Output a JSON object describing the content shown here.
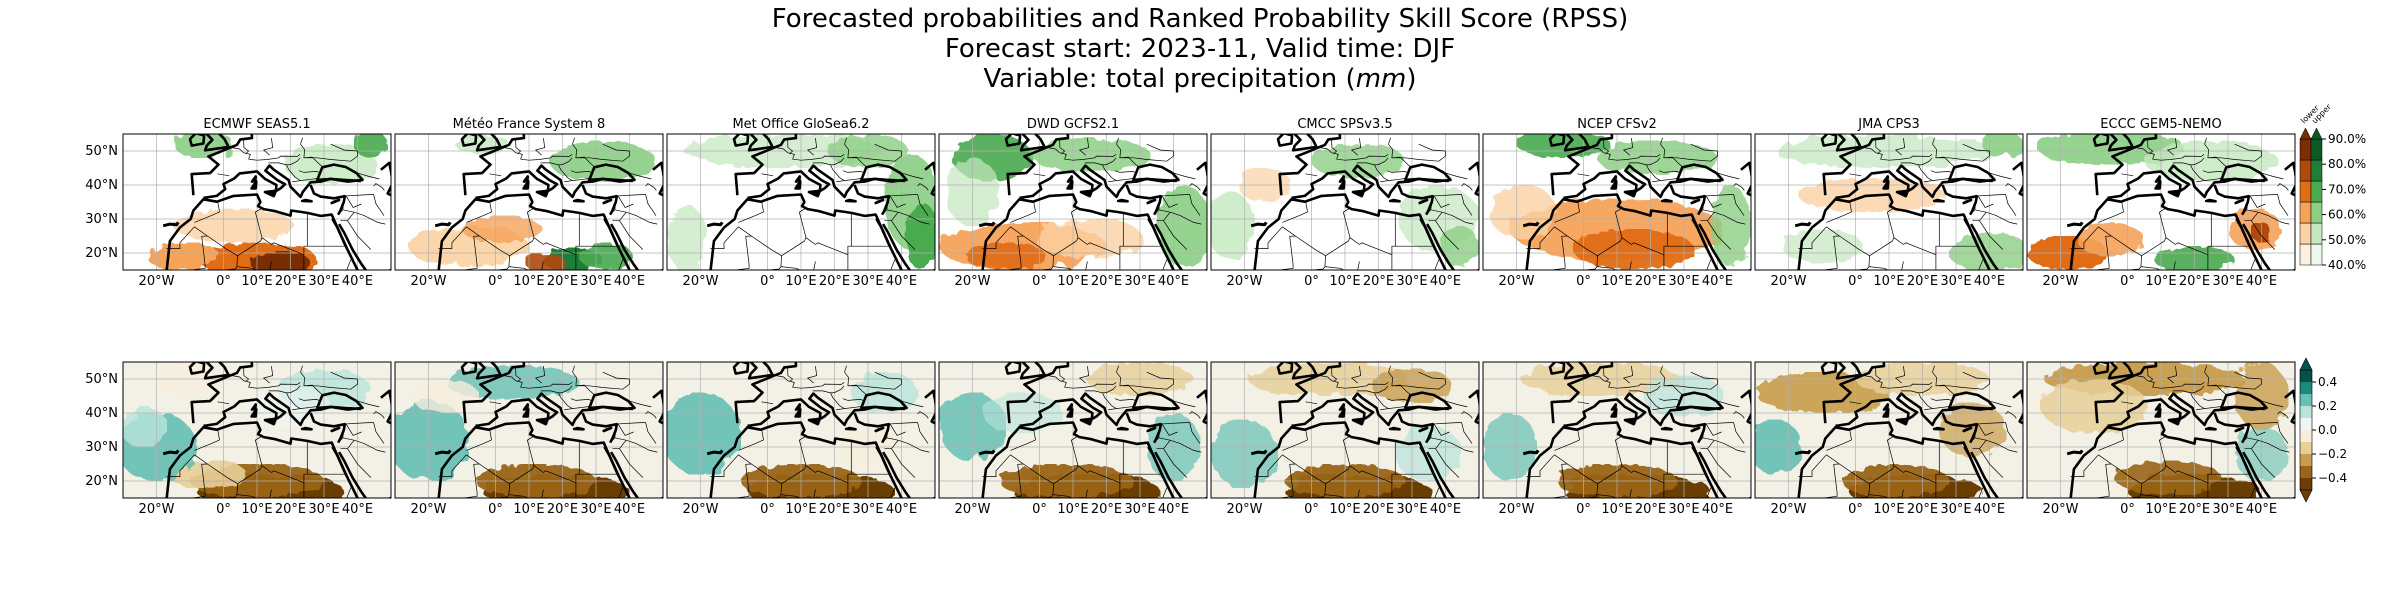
{
  "title": {
    "line1": "Forecasted probabilities and Ranked Probability Skill Score (RPSS)",
    "line2": "Forecast start: 2023-11, Valid time: DJF",
    "line3_prefix": "Variable: total precipitation (",
    "line3_unit": "mm",
    "line3_suffix": ")"
  },
  "models": [
    "ECMWF SEAS5.1",
    "Météo France System 8",
    "Met Office GloSea6.2",
    "DWD GCFS2.1",
    "CMCC SPSv3.5",
    "NCEP CFSv2",
    "JMA CPS3",
    "ECCC GEM5-NEMO"
  ],
  "lat_ticks": [
    "50°N",
    "40°N",
    "30°N",
    "20°N"
  ],
  "lon_ticks": [
    "20°W",
    "0°",
    "10°E",
    "20°E",
    "30°E",
    "40°E"
  ],
  "prob_colorbar": {
    "ticks": [
      "90.0%",
      "80.0%",
      "70.0%",
      "60.0%",
      "50.0%",
      "40.0%"
    ],
    "side_labels": [
      "lower",
      "upper"
    ],
    "lower_colors": [
      "#fdf0e0",
      "#fbd2a3",
      "#f6a35a",
      "#e06c14",
      "#b04a08",
      "#7a2e04"
    ],
    "upper_colors": [
      "#eef8ec",
      "#c4e8bf",
      "#8ccf84",
      "#4aaa50",
      "#1f7f36",
      "#0b5a25"
    ]
  },
  "rpss_colorbar": {
    "ticks": [
      "0.4",
      "0.2",
      "0.0",
      "−0.2",
      "−0.4"
    ],
    "colors": [
      "#04524a",
      "#1a8a7e",
      "#66c0b4",
      "#b8e4dc",
      "#edf6f3",
      "#f7eedd",
      "#e8cf98",
      "#c89d4e",
      "#9a6518",
      "#6a3e05"
    ]
  }
}
